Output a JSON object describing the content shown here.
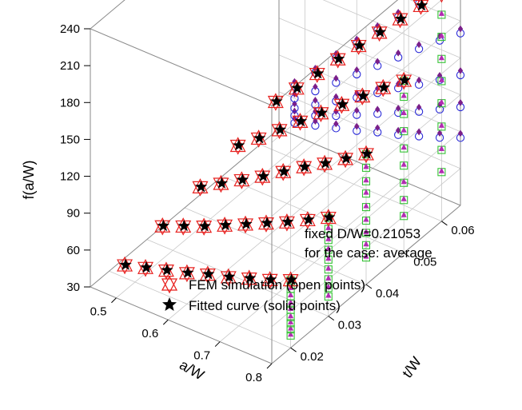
{
  "chart_data": {
    "type": "scatter",
    "projection": "3d",
    "z_axis": {
      "title": "f(a/W)",
      "ticks": [
        "30",
        "60",
        "90",
        "120",
        "150",
        "180",
        "210",
        "240"
      ],
      "range": [
        30,
        240
      ]
    },
    "x_axis": {
      "title": "a/W",
      "ticks": [
        "0.5",
        "0.6",
        "0.7",
        "0.8"
      ],
      "range": [
        0.45,
        0.8
      ]
    },
    "y_axis": {
      "title": "t/W",
      "ticks": [
        "0.02",
        "0.03",
        "0.04",
        "0.05",
        "0.06"
      ],
      "range": [
        0.015,
        0.065
      ]
    },
    "annotation": {
      "line1": "fixed D/W=0.21053",
      "line2": "for the case: average"
    },
    "legend": {
      "placement": "bottom-left",
      "entries": [
        {
          "label": "FEM simulation (open points)",
          "marker": "open-triangle-star",
          "color": "#e8211f"
        },
        {
          "label": "Fitted curve (solid points)",
          "marker": "filled-star",
          "color": "#000000"
        }
      ]
    },
    "grid": true,
    "colors": {
      "fem": "#e8211f",
      "fitted": "#000000",
      "back_wall_open": "#2a2ad8",
      "back_wall_solid": "#7a1f8a",
      "side_wall_open": "#35c235",
      "side_wall_solid": "#b22ab2",
      "grid": "#c8c8c8",
      "box": "#8a8a8a"
    },
    "series": [
      {
        "name": "FEM simulation (open points)",
        "t_levels": [
          0.02,
          0.03,
          0.04,
          0.05,
          0.06
        ],
        "a_values": [
          0.48,
          0.52,
          0.56,
          0.6,
          0.64,
          0.68,
          0.72,
          0.76,
          0.8
        ],
        "f_values": [
          [
            40,
            45,
            50,
            55,
            61,
            66,
            72,
            78,
            85
          ],
          [
            46,
            53,
            60,
            68,
            76,
            84,
            92,
            101,
            110
          ],
          [
            52,
            62,
            72,
            82,
            93,
            104,
            114,
            125,
            136
          ],
          [
            60,
            73,
            87,
            101,
            115,
            129,
            143,
            157,
            170
          ],
          [
            70,
            88,
            107,
            126,
            144,
            162,
            180,
            198,
            215
          ]
        ]
      },
      {
        "name": "Fitted curve (solid points)",
        "t_levels": [
          0.02,
          0.03,
          0.04,
          0.05,
          0.06
        ],
        "a_values": [
          0.48,
          0.52,
          0.56,
          0.6,
          0.64,
          0.68,
          0.72,
          0.76,
          0.8
        ],
        "f_values": [
          [
            41,
            46,
            51,
            56,
            62,
            67,
            73,
            79,
            86
          ],
          [
            47,
            54,
            61,
            69,
            77,
            85,
            93,
            102,
            111
          ],
          [
            53,
            63,
            73,
            83,
            94,
            105,
            115,
            126,
            137
          ],
          [
            61,
            74,
            88,
            102,
            116,
            130,
            144,
            158,
            171
          ],
          [
            71,
            89,
            108,
            127,
            145,
            163,
            181,
            199,
            216
          ]
        ]
      }
    ]
  }
}
